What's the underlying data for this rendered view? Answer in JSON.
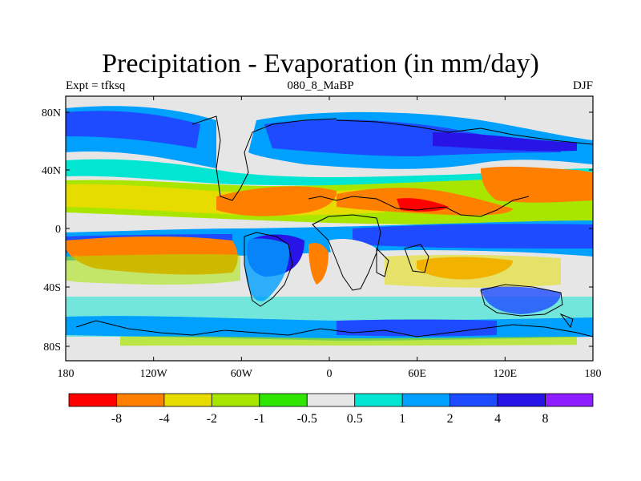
{
  "header": {
    "title": "Precipitation - Evaporation (in mm/day)",
    "left": "Expt = tfksq",
    "center": "080_8_MaBP",
    "right": "DJF"
  },
  "map": {
    "lat_ticks": [
      "80N",
      "40N",
      "0",
      "40S",
      "80S"
    ],
    "lon_ticks": [
      "180",
      "120W",
      "60W",
      "0",
      "60E",
      "120E",
      "180"
    ],
    "lon_range": [
      -180,
      180
    ],
    "lat_range": [
      -90,
      90
    ]
  },
  "colorbar": {
    "labels": [
      "-8",
      "-4",
      "-2",
      "-1",
      "-0.5",
      "0.5",
      "1",
      "2",
      "4",
      "8"
    ],
    "colors": [
      "#ff0000",
      "#ff8000",
      "#e6dc00",
      "#a8e600",
      "#2ee600",
      "#e6e6e6",
      "#00e6d2",
      "#00a0ff",
      "#1e4bff",
      "#2814e6",
      "#8c1eff"
    ]
  },
  "colors": {
    "land_outline": "#000000",
    "frame": "#000000",
    "neutral": "#e6e6e6"
  }
}
